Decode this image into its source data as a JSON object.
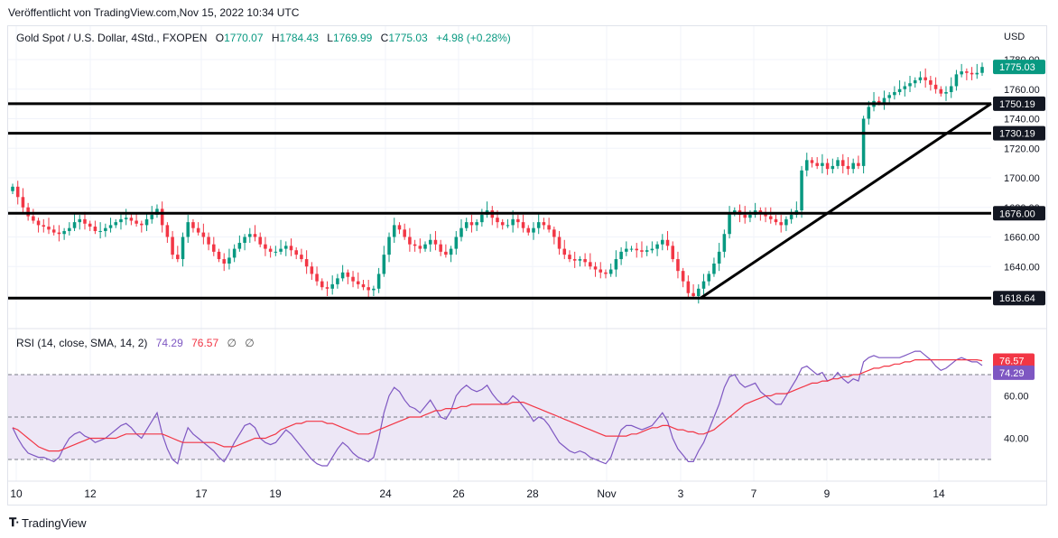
{
  "header": {
    "published": "Veröffentlicht von TradingView.com,Nov 15, 2022 10:34 UTC"
  },
  "legend": {
    "symbol": "Gold Spot / U.S. Dollar, 4Std., FXOPEN",
    "open_label": "O",
    "open": "1770.07",
    "high_label": "H",
    "high": "1784.43",
    "low_label": "L",
    "low": "1769.99",
    "close_label": "C",
    "close": "1775.03",
    "change": "+4.98 (+0.28%)"
  },
  "price_axis": {
    "currency": "USD",
    "ticks": [
      "1780.00",
      "1760.00",
      "1740.00",
      "1720.00",
      "1700.00",
      "1680.00",
      "1660.00",
      "1640.00"
    ],
    "last_price_label": "1775.03",
    "level_labels": [
      "1750.19",
      "1730.19",
      "1676.00",
      "1618.64"
    ]
  },
  "rsi_legend": {
    "title": "RSI (14, close, SMA, 14, 2)",
    "rsi_value": "74.29",
    "sma_value": "76.57",
    "na1": "∅",
    "na2": "∅"
  },
  "rsi_axis": {
    "ticks": [
      "60.00",
      "40.00"
    ],
    "sma_label": "76.57",
    "rsi_label": "74.29"
  },
  "time_axis": {
    "ticks": [
      "10",
      "12",
      "17",
      "19",
      "24",
      "26",
      "28",
      "Nov",
      "3",
      "7",
      "9",
      "14"
    ]
  },
  "branding": {
    "logo_text": "TradingView"
  },
  "colors": {
    "up": "#089981",
    "down": "#f23645",
    "rsi": "#7e57c2",
    "rsi_sma": "#f23645",
    "level_line": "#000000",
    "rsi_band": "#ede7f6"
  },
  "chart_data": [
    {
      "type": "candlestick",
      "title": "Gold Spot / U.S. Dollar, 4Std., FXOPEN",
      "ylim": [
        1614,
        1786
      ],
      "x_ticks": [
        "10",
        "12",
        "17",
        "19",
        "24",
        "26",
        "28",
        "Nov",
        "3",
        "7",
        "9",
        "14"
      ],
      "horizontal_levels": [
        1750.19,
        1730.19,
        1676.0,
        1618.64
      ],
      "trendline": {
        "from": 1618.64,
        "to": 1750.19
      },
      "last": {
        "open": 1770.07,
        "high": 1784.43,
        "low": 1769.99,
        "close": 1775.03,
        "change": 4.98,
        "change_pct": 0.28
      },
      "closes": [
        1694,
        1687,
        1680,
        1674,
        1671,
        1668,
        1667,
        1665,
        1663,
        1662,
        1664,
        1666,
        1670,
        1672,
        1669,
        1667,
        1664,
        1664,
        1666,
        1668,
        1670,
        1672,
        1673,
        1671,
        1669,
        1668,
        1672,
        1675,
        1679,
        1668,
        1660,
        1648,
        1645,
        1660,
        1670,
        1666,
        1663,
        1660,
        1655,
        1650,
        1645,
        1642,
        1646,
        1652,
        1656,
        1660,
        1662,
        1660,
        1655,
        1652,
        1650,
        1650,
        1652,
        1654,
        1651,
        1648,
        1645,
        1640,
        1635,
        1630,
        1626,
        1625,
        1628,
        1632,
        1636,
        1633,
        1630,
        1628,
        1626,
        1624,
        1625,
        1635,
        1648,
        1660,
        1668,
        1665,
        1660,
        1655,
        1654,
        1652,
        1655,
        1658,
        1655,
        1650,
        1648,
        1652,
        1660,
        1666,
        1670,
        1668,
        1670,
        1675,
        1678,
        1673,
        1670,
        1668,
        1668,
        1672,
        1670,
        1666,
        1663,
        1666,
        1670,
        1668,
        1665,
        1660,
        1652,
        1648,
        1645,
        1644,
        1645,
        1643,
        1640,
        1638,
        1636,
        1635,
        1638,
        1645,
        1650,
        1652,
        1652,
        1651,
        1650,
        1651,
        1652,
        1655,
        1658,
        1654,
        1645,
        1637,
        1630,
        1622,
        1620,
        1625,
        1630,
        1635,
        1642,
        1650,
        1662,
        1676,
        1678,
        1675,
        1673,
        1675,
        1678,
        1676,
        1674,
        1672,
        1670,
        1668,
        1672,
        1675,
        1678,
        1705,
        1712,
        1710,
        1708,
        1710,
        1706,
        1708,
        1712,
        1708,
        1706,
        1710,
        1708,
        1740,
        1748,
        1752,
        1751,
        1754,
        1756,
        1758,
        1760,
        1762,
        1764,
        1766,
        1768,
        1766,
        1763,
        1760,
        1757,
        1758,
        1762,
        1770,
        1772,
        1771,
        1770,
        1771,
        1775
      ],
      "rsi": [
        45,
        40,
        36,
        33,
        32,
        31,
        31,
        30,
        29,
        31,
        36,
        40,
        42,
        43,
        41,
        40,
        38,
        39,
        40,
        42,
        44,
        46,
        47,
        45,
        42,
        40,
        44,
        48,
        52,
        42,
        35,
        30,
        28,
        38,
        45,
        42,
        40,
        38,
        36,
        34,
        31,
        29,
        33,
        38,
        42,
        46,
        47,
        45,
        40,
        38,
        37,
        38,
        41,
        44,
        42,
        39,
        36,
        33,
        30,
        28,
        27,
        27,
        31,
        35,
        38,
        36,
        33,
        31,
        30,
        29,
        31,
        40,
        52,
        60,
        64,
        62,
        58,
        55,
        54,
        52,
        55,
        58,
        54,
        50,
        49,
        53,
        60,
        63,
        65,
        63,
        62,
        63,
        65,
        61,
        58,
        56,
        57,
        60,
        58,
        55,
        52,
        48,
        50,
        49,
        46,
        42,
        38,
        36,
        34,
        33,
        34,
        33,
        31,
        30,
        29,
        28,
        31,
        38,
        44,
        46,
        46,
        45,
        44,
        45,
        46,
        49,
        52,
        48,
        40,
        35,
        32,
        29,
        29,
        34,
        38,
        44,
        50,
        56,
        64,
        69,
        70,
        66,
        64,
        65,
        66,
        62,
        60,
        58,
        56,
        56,
        60,
        64,
        68,
        73,
        74,
        72,
        70,
        71,
        67,
        68,
        71,
        68,
        66,
        68,
        67,
        76,
        78,
        79,
        78,
        78,
        78,
        78,
        78,
        79,
        80,
        81,
        81,
        79,
        77,
        74,
        72,
        73,
        75,
        77,
        78,
        77,
        76,
        76,
        74.29
      ],
      "rsi_sma": [
        45,
        44,
        42,
        40,
        38,
        36,
        35,
        34,
        34,
        34,
        35,
        36,
        37,
        38,
        39,
        40,
        40,
        40,
        40,
        40,
        40,
        41,
        42,
        42,
        42,
        42,
        42,
        42,
        42,
        42,
        41,
        40,
        39,
        38,
        38,
        38,
        38,
        38,
        38,
        38,
        37,
        36,
        36,
        36,
        37,
        38,
        39,
        40,
        40,
        40,
        41,
        42,
        44,
        45,
        46,
        47,
        47,
        48,
        48,
        48,
        48,
        47,
        47,
        46,
        45,
        44,
        43,
        42,
        42,
        42,
        43,
        44,
        45,
        46,
        47,
        48,
        49,
        50,
        50,
        50,
        51,
        52,
        53,
        53,
        54,
        54,
        54,
        55,
        55,
        56,
        56,
        56,
        56,
        56,
        56,
        56,
        56,
        57,
        57,
        57,
        56,
        55,
        54,
        53,
        52,
        51,
        50,
        49,
        48,
        47,
        46,
        45,
        44,
        43,
        42,
        41,
        41,
        41,
        41,
        41,
        42,
        42,
        43,
        44,
        45,
        45,
        46,
        46,
        45,
        44,
        44,
        43,
        43,
        42,
        42,
        43,
        44,
        46,
        48,
        50,
        52,
        54,
        56,
        57,
        58,
        59,
        60,
        60,
        61,
        61,
        61,
        62,
        63,
        64,
        65,
        66,
        66,
        67,
        67,
        68,
        68,
        69,
        69,
        70,
        70,
        71,
        72,
        73,
        73,
        74,
        74,
        75,
        75,
        76,
        76,
        77,
        77,
        77,
        77,
        77,
        77,
        77,
        77,
        77,
        77,
        77,
        77,
        77,
        76.57
      ],
      "rsi_ylim": [
        24,
        86
      ],
      "rsi_levels": [
        70,
        50,
        30
      ]
    }
  ]
}
